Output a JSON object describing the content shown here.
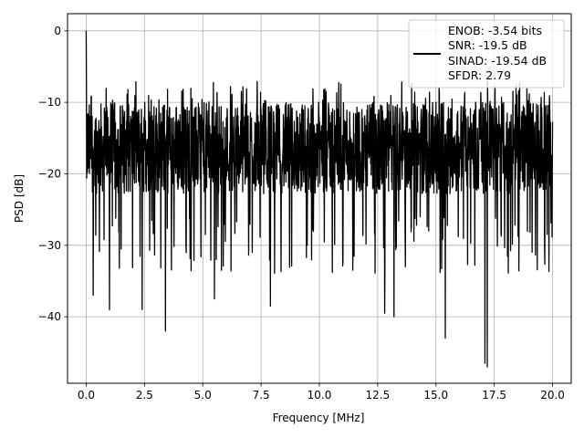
{
  "chart_data": {
    "type": "line",
    "title": "",
    "xlabel": "Frequency [MHz]",
    "ylabel": "PSD [dB]",
    "xlim": [
      -0.8,
      20.8
    ],
    "ylim": [
      -49.3,
      2.4
    ],
    "xticks": [
      0.0,
      2.5,
      5.0,
      7.5,
      10.0,
      12.5,
      15.0,
      17.5,
      20.0
    ],
    "xtick_labels": [
      "0.0",
      "2.5",
      "5.0",
      "7.5",
      "10.0",
      "12.5",
      "15.0",
      "17.5",
      "20.0"
    ],
    "yticks": [
      0,
      -10,
      -20,
      -30,
      -40
    ],
    "ytick_labels": [
      "0",
      "−10",
      "−20",
      "−30",
      "−40"
    ],
    "grid": true,
    "legend": {
      "placement": "top-right",
      "entries": [
        "ENOB: -3.54 bits",
        "SNR: -19.5 dB",
        "SINAD: -19.54 dB",
        "SFDR: 2.79"
      ]
    },
    "series": [
      {
        "color": "#000000",
        "x_range": [
          0,
          20
        ],
        "peak": {
          "x": 0.0,
          "y": 0.0
        },
        "typical_range": [
          -26,
          -10
        ],
        "minima": [
          {
            "x": 0.3,
            "y": -37
          },
          {
            "x": 1.0,
            "y": -39
          },
          {
            "x": 2.4,
            "y": -39
          },
          {
            "x": 3.4,
            "y": -42
          },
          {
            "x": 5.5,
            "y": -37.5
          },
          {
            "x": 7.9,
            "y": -38.5
          },
          {
            "x": 12.8,
            "y": -39.5
          },
          {
            "x": 13.2,
            "y": -40
          },
          {
            "x": 15.4,
            "y": -43
          },
          {
            "x": 17.1,
            "y": -46.5
          },
          {
            "x": 17.2,
            "y": -47
          }
        ]
      }
    ]
  }
}
